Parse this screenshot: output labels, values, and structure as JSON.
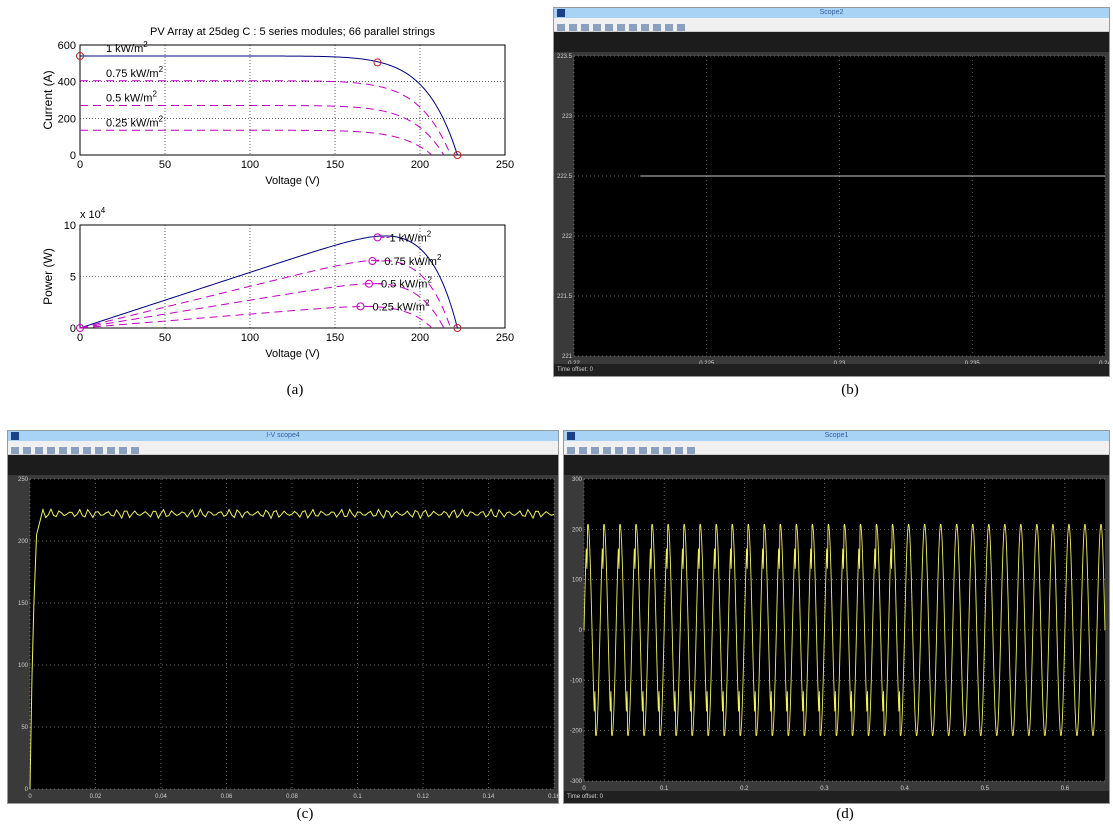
{
  "labels": {
    "a": "(a)",
    "b": "(b)",
    "c": "(c)",
    "d": "(d)"
  },
  "chart_data": [
    {
      "id": "a-top",
      "type": "line",
      "title": "PV Array at 25deg C : 5 series modules; 66 parallel strings",
      "xlabel": "Voltage (V)",
      "ylabel": "Current (A)",
      "xlim": [
        0,
        250
      ],
      "ylim": [
        0,
        600
      ],
      "xticks": [
        0,
        50,
        100,
        150,
        200,
        250
      ],
      "yticks": [
        0,
        200,
        400,
        600
      ],
      "grid": true,
      "series": [
        {
          "name": "1 kW/m2",
          "label_main": "1 kW/m",
          "color": "#00007f",
          "dash": "",
          "isc": 540,
          "voc": 222,
          "mpp": [
            175,
            505
          ]
        },
        {
          "name": "0.75 kW/m2",
          "label_main": "0.75 kW/m",
          "color": "#c000c0",
          "dash": "8,5",
          "isc": 405,
          "voc": 218
        },
        {
          "name": "0.5 kW/m2",
          "label_main": "0.5 kW/m",
          "color": "#c000c0",
          "dash": "8,5",
          "isc": 270,
          "voc": 214
        },
        {
          "name": "0.25 kW/m2",
          "label_main": "0.25 kW/m",
          "color": "#c000c0",
          "dash": "8,5",
          "isc": 135,
          "voc": 207
        }
      ]
    },
    {
      "id": "a-bottom",
      "type": "line",
      "xlabel": "Voltage (V)",
      "ylabel": "Power (W)",
      "y_multiplier": "x 10",
      "y_multiplier_exp": "4",
      "xlim": [
        0,
        250
      ],
      "ylim": [
        0,
        10
      ],
      "xticks": [
        0,
        50,
        100,
        150,
        200,
        250
      ],
      "yticks": [
        0,
        5,
        10
      ],
      "grid": true,
      "series": [
        {
          "name": "1 kW/m2",
          "label_main": "1 kW/m",
          "color": "#00007f",
          "dash": "",
          "mpp": [
            175,
            8.8
          ],
          "voc": 222
        },
        {
          "name": "0.75 kW/m2",
          "label_main": "0.75 kW/m",
          "color": "#c000c0",
          "dash": "8,5",
          "mpp": [
            172,
            6.5
          ],
          "voc": 218
        },
        {
          "name": "0.5 kW/m2",
          "label_main": "0.5 kW/m",
          "color": "#c000c0",
          "dash": "8,5",
          "mpp": [
            170,
            4.3
          ],
          "voc": 214
        },
        {
          "name": "0.25 kW/m2",
          "label_main": "0.25 kW/m",
          "color": "#c000c0",
          "dash": "8,5",
          "mpp": [
            165,
            2.1
          ],
          "voc": 207
        }
      ]
    },
    {
      "id": "b",
      "type": "line",
      "window_title": "Scope2",
      "time_offset": "Time offset:  0",
      "xlim": [
        0.22,
        0.24
      ],
      "ylim": [
        221,
        223.5
      ],
      "xticks": [
        "0.22",
        "0.225",
        "0.23",
        "0.235",
        "0.24"
      ],
      "yticks": [
        "221",
        "221.5",
        "222",
        "222.5",
        "223",
        "223.5"
      ],
      "grid": true,
      "series": [
        {
          "color": "#c8c8c8",
          "x": [
            0.2225,
            0.24
          ],
          "y": [
            222.5,
            222.5
          ]
        }
      ]
    },
    {
      "id": "c",
      "type": "line",
      "window_title": "I-V scope4",
      "xlim": [
        0,
        0.16
      ],
      "ylim": [
        0,
        250
      ],
      "xticks": [
        "0",
        "0.02",
        "0.04",
        "0.06",
        "0.08",
        "0.1",
        "0.12",
        "0.14",
        "0.16"
      ],
      "yticks": [
        "0",
        "50",
        "100",
        "150",
        "200",
        "250"
      ],
      "grid": true,
      "series": [
        {
          "color": "#f0f060",
          "steady_value": 222,
          "peak": 226,
          "rise_end": 0.004
        }
      ]
    },
    {
      "id": "d",
      "type": "line",
      "window_title": "Scope1",
      "time_offset": "Time offset:  0",
      "xlim": [
        0,
        0.65
      ],
      "ylim": [
        -300,
        300
      ],
      "xticks": [
        "0",
        "0.1",
        "0.2",
        "0.3",
        "0.4",
        "0.5",
        "0.6"
      ],
      "yticks": [
        "-300",
        "-200",
        "-100",
        "0",
        "100",
        "200",
        "300"
      ],
      "grid": true,
      "series": [
        {
          "color": "#f0f060",
          "amplitude": 210,
          "frequency_hz": 50,
          "distorted_until": 0.4
        }
      ]
    }
  ]
}
